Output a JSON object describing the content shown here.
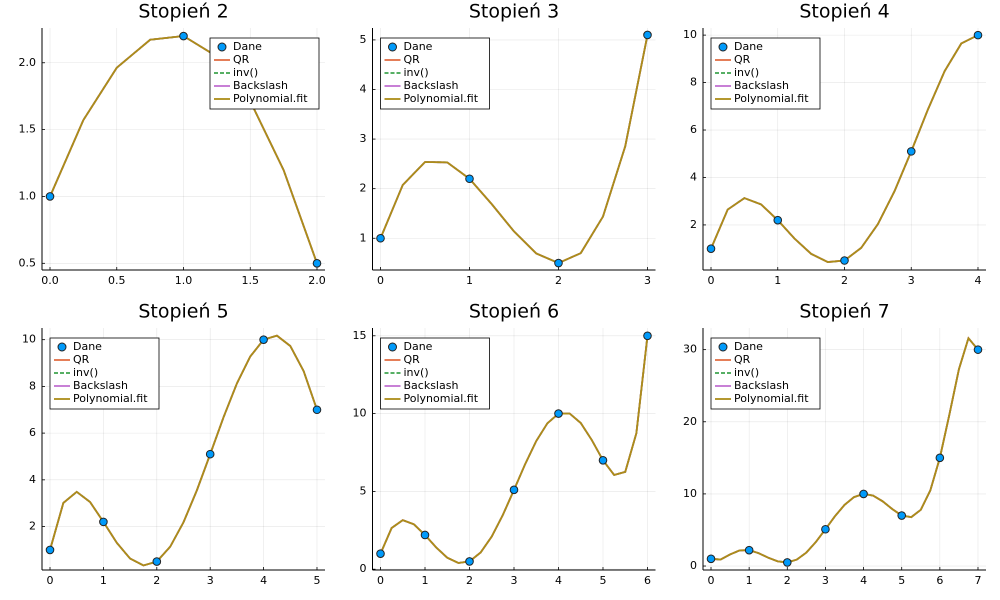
{
  "chart_data": [
    {
      "type": "line",
      "title": "Stopień 2",
      "legend": "topright",
      "grid": true,
      "xlim": [
        -0.06,
        2.06
      ],
      "xticks": [
        {
          "value": 0,
          "label": "0.0"
        },
        0.5,
        {
          "value": 1,
          "label": "1.0"
        },
        1.5,
        {
          "value": 2,
          "label": "2.0"
        }
      ],
      "ylim": [
        0.45,
        2.26
      ],
      "yticks": [
        0.5,
        {
          "value": 1,
          "label": "1.0"
        },
        1.5,
        {
          "value": 2,
          "label": "2.0"
        }
      ],
      "x": [
        0,
        0.25,
        0.5,
        0.75,
        1,
        1.25,
        1.5,
        1.75,
        2
      ],
      "series": [
        {
          "name": "Dane",
          "color": "#009afa",
          "marker": "circle",
          "x": [
            0,
            1,
            2
          ],
          "values": [
            1,
            2.2,
            0.5
          ]
        },
        {
          "name": "QR",
          "color": "#e26f46",
          "linestyle": "solid",
          "values": [
            1,
            1.572,
            1.963,
            2.172,
            2.2,
            2.047,
            1.713,
            1.197,
            0.5
          ]
        },
        {
          "name": "inv()",
          "color": "#3ea44e",
          "linestyle": "dash",
          "values": [
            1,
            1.572,
            1.963,
            2.172,
            2.2,
            2.047,
            1.713,
            1.197,
            0.5
          ]
        },
        {
          "name": "Backslash",
          "color": "#c271d2",
          "linestyle": "solid",
          "values": [
            1,
            1.572,
            1.963,
            2.172,
            2.2,
            2.047,
            1.713,
            1.197,
            0.5
          ]
        },
        {
          "name": "Polynomial.fit",
          "color": "#ac8d18",
          "linestyle": "solid",
          "values": [
            1,
            1.572,
            1.963,
            2.172,
            2.2,
            2.047,
            1.713,
            1.197,
            0.5
          ]
        }
      ]
    },
    {
      "type": "line",
      "title": "Stopień 3",
      "legend": "topleft",
      "grid": true,
      "xlim": [
        -0.09,
        3.09
      ],
      "xticks": [
        0,
        1,
        2,
        3
      ],
      "ylim": [
        0.36,
        5.24
      ],
      "yticks": [
        1,
        2,
        3,
        4,
        5
      ],
      "x": [
        0,
        0.25,
        0.5,
        0.75,
        1,
        1.25,
        1.5,
        1.75,
        2,
        2.25,
        2.5,
        2.75,
        3
      ],
      "series": [
        {
          "name": "Dane",
          "color": "#009afa",
          "marker": "circle",
          "x": [
            0,
            1,
            2,
            3
          ],
          "values": [
            1,
            2.2,
            0.5,
            5.1
          ]
        },
        {
          "name": "QR",
          "color": "#e26f46",
          "linestyle": "solid",
          "values": [
            1,
            2.075,
            2.538,
            2.531,
            2.2,
            1.688,
            1.138,
            0.694,
            0.5,
            0.7,
            1.438,
            2.856,
            5.1
          ]
        },
        {
          "name": "inv()",
          "color": "#3ea44e",
          "linestyle": "dash",
          "values": [
            1,
            2.075,
            2.538,
            2.531,
            2.2,
            1.688,
            1.138,
            0.694,
            0.5,
            0.7,
            1.438,
            2.856,
            5.1
          ]
        },
        {
          "name": "Backslash",
          "color": "#c271d2",
          "linestyle": "solid",
          "values": [
            1,
            2.075,
            2.538,
            2.531,
            2.2,
            1.688,
            1.138,
            0.694,
            0.5,
            0.7,
            1.438,
            2.856,
            5.1
          ]
        },
        {
          "name": "Polynomial.fit",
          "color": "#ac8d18",
          "linestyle": "solid",
          "values": [
            1,
            2.075,
            2.538,
            2.531,
            2.2,
            1.688,
            1.138,
            0.694,
            0.5,
            0.7,
            1.438,
            2.856,
            5.1
          ]
        }
      ]
    },
    {
      "type": "line",
      "title": "Stopień 4",
      "legend": "topleft",
      "grid": true,
      "xlim": [
        -0.12,
        4.12
      ],
      "xticks": [
        0,
        1,
        2,
        3,
        4
      ],
      "ylim": [
        0.1,
        10.3
      ],
      "yticks": [
        2,
        4,
        6,
        8,
        10
      ],
      "x": [
        0,
        0.25,
        0.5,
        0.75,
        1,
        1.25,
        1.5,
        1.75,
        2,
        2.25,
        2.5,
        2.75,
        3,
        3.25,
        3.5,
        3.75,
        4
      ],
      "series": [
        {
          "name": "Dane",
          "color": "#009afa",
          "marker": "circle",
          "x": [
            0,
            1,
            2,
            3,
            4
          ],
          "values": [
            1,
            2.2,
            0.5,
            5.1,
            10
          ]
        },
        {
          "name": "QR",
          "color": "#e26f46",
          "linestyle": "solid",
          "values": [
            1,
            2.647,
            3.131,
            2.865,
            2.2,
            1.428,
            0.781,
            0.434,
            0.5,
            1.034,
            2.031,
            3.427,
            5.1,
            6.866,
            8.481,
            9.647,
            10
          ]
        },
        {
          "name": "inv()",
          "color": "#3ea44e",
          "linestyle": "dash",
          "values": [
            1,
            2.647,
            3.131,
            2.865,
            2.2,
            1.428,
            0.781,
            0.434,
            0.5,
            1.034,
            2.031,
            3.427,
            5.1,
            6.866,
            8.481,
            9.647,
            10
          ]
        },
        {
          "name": "Backslash",
          "color": "#c271d2",
          "linestyle": "solid",
          "values": [
            1,
            2.647,
            3.131,
            2.865,
            2.2,
            1.428,
            0.781,
            0.434,
            0.5,
            1.034,
            2.031,
            3.427,
            5.1,
            6.866,
            8.481,
            9.647,
            10
          ]
        },
        {
          "name": "Polynomial.fit",
          "color": "#ac8d18",
          "linestyle": "solid",
          "values": [
            1,
            2.647,
            3.131,
            2.865,
            2.2,
            1.428,
            0.781,
            0.434,
            0.5,
            1.034,
            2.031,
            3.427,
            5.1,
            6.866,
            8.481,
            9.647,
            10
          ]
        }
      ]
    },
    {
      "type": "line",
      "title": "Stopień 5",
      "legend": "topleft",
      "grid": true,
      "xlim": [
        -0.15,
        5.15
      ],
      "xticks": [
        0,
        1,
        2,
        3,
        4,
        5
      ],
      "ylim": [
        0.14,
        10.5
      ],
      "yticks": [
        2,
        4,
        6,
        8,
        10
      ],
      "x": [
        0,
        0.25,
        0.5,
        0.75,
        1,
        1.25,
        1.5,
        1.75,
        2,
        2.25,
        2.5,
        2.75,
        3,
        3.25,
        3.5,
        3.75,
        4,
        4.25,
        4.5,
        4.75,
        5
      ],
      "series": [
        {
          "name": "Dane",
          "color": "#009afa",
          "marker": "circle",
          "x": [
            0,
            1,
            2,
            3,
            4,
            5
          ],
          "values": [
            1,
            2.2,
            0.5,
            5.1,
            10,
            7
          ]
        },
        {
          "name": "QR",
          "color": "#e26f46",
          "linestyle": "solid",
          "values": [
            1,
            3.013,
            3.486,
            3.051,
            2.2,
            1.306,
            0.629,
            0.334,
            0.5,
            1.134,
            2.183,
            3.549,
            5.1,
            6.68,
            8.126,
            9.28,
            10,
            10.173,
            9.729,
            8.655,
            7
          ]
        },
        {
          "name": "inv()",
          "color": "#3ea44e",
          "linestyle": "dash",
          "values": [
            1,
            3.013,
            3.486,
            3.051,
            2.2,
            1.306,
            0.629,
            0.334,
            0.5,
            1.134,
            2.183,
            3.549,
            5.1,
            6.68,
            8.126,
            9.28,
            10,
            10.173,
            9.729,
            8.655,
            7
          ]
        },
        {
          "name": "Backslash",
          "color": "#c271d2",
          "linestyle": "solid",
          "values": [
            1,
            3.013,
            3.486,
            3.051,
            2.2,
            1.306,
            0.629,
            0.334,
            0.5,
            1.134,
            2.183,
            3.549,
            5.1,
            6.68,
            8.126,
            9.28,
            10,
            10.173,
            9.729,
            8.655,
            7
          ]
        },
        {
          "name": "Polynomial.fit",
          "color": "#ac8d18",
          "linestyle": "solid",
          "values": [
            1,
            3.013,
            3.486,
            3.051,
            2.2,
            1.306,
            0.629,
            0.334,
            0.5,
            1.134,
            2.183,
            3.549,
            5.1,
            6.68,
            8.126,
            9.28,
            10,
            10.173,
            9.729,
            8.655,
            7
          ]
        }
      ]
    },
    {
      "type": "line",
      "title": "Stopień 6",
      "legend": "topleft",
      "grid": true,
      "xlim": [
        -0.18,
        6.18
      ],
      "xticks": [
        0,
        1,
        2,
        3,
        4,
        5,
        6
      ],
      "ylim": [
        -0.05,
        15.5
      ],
      "yticks": [
        0,
        5,
        10,
        15
      ],
      "x": [
        0,
        0.25,
        0.5,
        0.75,
        1,
        1.25,
        1.5,
        1.75,
        2,
        2.25,
        2.5,
        2.75,
        3,
        3.25,
        3.5,
        3.75,
        4,
        4.25,
        4.5,
        4.75,
        5,
        5.25,
        5.5,
        5.75,
        6
      ],
      "series": [
        {
          "name": "Dane",
          "color": "#009afa",
          "marker": "circle",
          "x": [
            0,
            1,
            2,
            3,
            4,
            5,
            6
          ],
          "values": [
            1,
            2.2,
            0.5,
            5.1,
            10,
            7,
            15
          ]
        },
        {
          "name": "QR",
          "color": "#e26f46",
          "linestyle": "solid",
          "values": [
            1,
            2.649,
            3.152,
            2.886,
            2.2,
            1.402,
            0.74,
            0.402,
            0.5,
            1.077,
            2.103,
            3.492,
            5.1,
            6.748,
            8.237,
            9.376,
            10,
            10.008,
            9.395,
            8.291,
            7,
            6.056,
            6.254,
            8.737,
            15
          ]
        },
        {
          "name": "inv()",
          "color": "#3ea44e",
          "linestyle": "dash",
          "values": [
            1,
            2.649,
            3.152,
            2.886,
            2.2,
            1.402,
            0.74,
            0.402,
            0.5,
            1.077,
            2.103,
            3.492,
            5.1,
            6.748,
            8.237,
            9.376,
            10,
            10.008,
            9.395,
            8.291,
            7,
            6.056,
            6.254,
            8.737,
            15
          ]
        },
        {
          "name": "Backslash",
          "color": "#c271d2",
          "linestyle": "solid",
          "values": [
            1,
            2.649,
            3.152,
            2.886,
            2.2,
            1.402,
            0.74,
            0.402,
            0.5,
            1.077,
            2.103,
            3.492,
            5.1,
            6.748,
            8.237,
            9.376,
            10,
            10.008,
            9.395,
            8.291,
            7,
            6.056,
            6.254,
            8.737,
            15
          ]
        },
        {
          "name": "Polynomial.fit",
          "color": "#ac8d18",
          "linestyle": "solid",
          "values": [
            1,
            2.649,
            3.152,
            2.886,
            2.2,
            1.402,
            0.74,
            0.402,
            0.5,
            1.077,
            2.103,
            3.492,
            5.1,
            6.748,
            8.237,
            9.376,
            10,
            10.008,
            9.395,
            8.291,
            7,
            6.056,
            6.254,
            8.737,
            15
          ]
        }
      ]
    },
    {
      "type": "line",
      "title": "Stopień 7",
      "legend": "topleft",
      "grid": true,
      "xlim": [
        -0.21,
        7.21
      ],
      "xticks": [
        0,
        1,
        2,
        3,
        4,
        5,
        6,
        7
      ],
      "ylim": [
        -0.55,
        33
      ],
      "yticks": [
        0,
        10,
        20,
        30
      ],
      "x": [
        0,
        0.25,
        0.5,
        0.75,
        1,
        1.25,
        1.5,
        1.75,
        2,
        2.25,
        2.5,
        2.75,
        3,
        3.25,
        3.5,
        3.75,
        4,
        4.25,
        4.5,
        4.75,
        5,
        5.25,
        5.5,
        5.75,
        6,
        6.25,
        6.5,
        6.75,
        7
      ],
      "series": [
        {
          "name": "Dane",
          "color": "#009afa",
          "marker": "circle",
          "x": [
            0,
            1,
            2,
            3,
            4,
            5,
            6,
            7
          ],
          "values": [
            1,
            2.2,
            0.5,
            5.1,
            10,
            7,
            15,
            30
          ]
        },
        {
          "name": "QR",
          "color": "#e26f46",
          "linestyle": "solid",
          "values": [
            1,
            0.896,
            1.612,
            2.161,
            2.2,
            1.783,
            1.16,
            0.644,
            0.5,
            0.896,
            1.87,
            3.336,
            5.1,
            6.904,
            8.47,
            9.557,
            10,
            9.766,
            8.975,
            7.91,
            7,
            6.781,
            7.794,
            10.49,
            15,
            21,
            27.29,
            31.59,
            30
          ]
        },
        {
          "name": "inv()",
          "color": "#3ea44e",
          "linestyle": "dash",
          "values": [
            1,
            0.896,
            1.612,
            2.161,
            2.2,
            1.783,
            1.16,
            0.644,
            0.5,
            0.896,
            1.87,
            3.336,
            5.1,
            6.904,
            8.47,
            9.557,
            10,
            9.766,
            8.975,
            7.91,
            7,
            6.781,
            7.794,
            10.49,
            15,
            21,
            27.29,
            31.59,
            30
          ]
        },
        {
          "name": "Backslash",
          "color": "#c271d2",
          "linestyle": "solid",
          "values": [
            1,
            0.896,
            1.612,
            2.161,
            2.2,
            1.783,
            1.16,
            0.644,
            0.5,
            0.896,
            1.87,
            3.336,
            5.1,
            6.904,
            8.47,
            9.557,
            10,
            9.766,
            8.975,
            7.91,
            7,
            6.781,
            7.794,
            10.49,
            15,
            21,
            27.29,
            31.59,
            30
          ]
        },
        {
          "name": "Polynomial.fit",
          "color": "#ac8d18",
          "linestyle": "solid",
          "values": [
            1,
            0.896,
            1.612,
            2.161,
            2.2,
            1.783,
            1.16,
            0.644,
            0.5,
            0.896,
            1.87,
            3.336,
            5.1,
            6.904,
            8.47,
            9.557,
            10,
            9.766,
            8.975,
            7.91,
            7,
            6.781,
            7.794,
            10.49,
            15,
            21,
            27.29,
            31.59,
            30
          ]
        }
      ]
    }
  ]
}
